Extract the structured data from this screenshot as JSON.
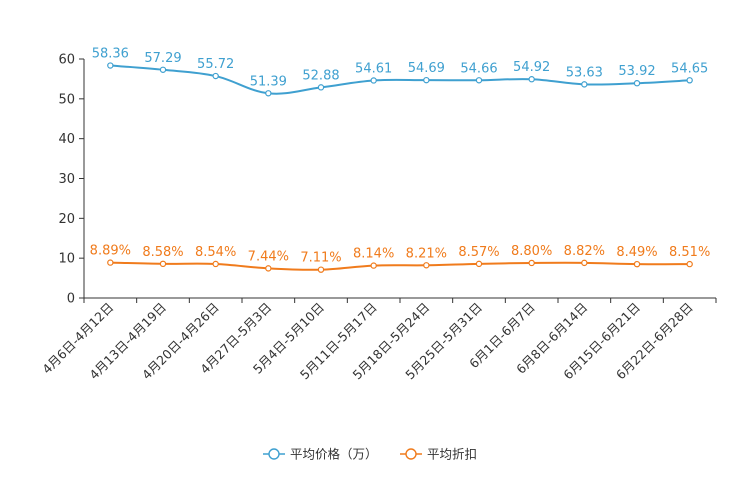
{
  "chart_data": {
    "type": "line",
    "title": "",
    "xlabel": "",
    "ylabel": "",
    "ylim": [
      0,
      60
    ],
    "yticks": [
      0,
      10,
      20,
      30,
      40,
      50,
      60
    ],
    "categories": [
      "4月6日-4月12日",
      "4月13日-4月19日",
      "4月20日-4月26日",
      "4月27日-5月3日",
      "5月4日-5月10日",
      "5月11日-5月17日",
      "5月18日-5月24日",
      "5月25日-5月31日",
      "6月1日-6月7日",
      "6月8日-6月14日",
      "6月15日-6月21日",
      "6月22日-6月28日"
    ],
    "series": [
      {
        "name": "平均价格（万）",
        "color": "#3fa0d0",
        "values": [
          58.36,
          57.29,
          55.72,
          51.39,
          52.88,
          54.61,
          54.69,
          54.66,
          54.92,
          53.63,
          53.92,
          54.65
        ],
        "labels": [
          "58.36",
          "57.29",
          "55.72",
          "51.39",
          "52.88",
          "54.61",
          "54.69",
          "54.66",
          "54.92",
          "53.63",
          "53.92",
          "54.65"
        ]
      },
      {
        "name": "平均折扣",
        "color": "#f07b1c",
        "values": [
          8.89,
          8.58,
          8.54,
          7.44,
          7.11,
          8.14,
          8.21,
          8.57,
          8.8,
          8.82,
          8.49,
          8.51
        ],
        "labels": [
          "8.89%",
          "8.58%",
          "8.54%",
          "7.44%",
          "7.11%",
          "8.14%",
          "8.21%",
          "8.57%",
          "8.80%",
          "8.82%",
          "8.49%",
          "8.51%"
        ]
      }
    ],
    "legend_position": "bottom-center"
  }
}
